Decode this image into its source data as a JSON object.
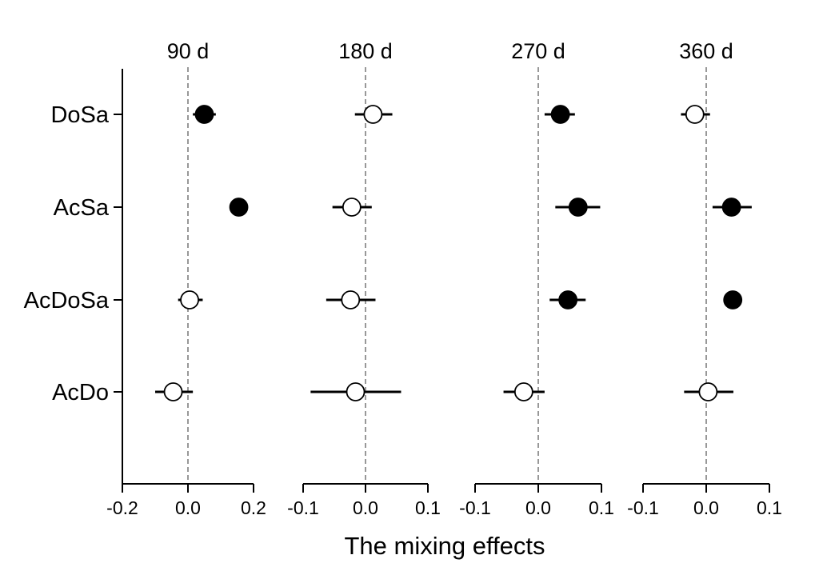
{
  "chart_data": {
    "type": "scatter",
    "subtype": "dot-and-whisker, faceted",
    "xlabel": "The mixing effects",
    "ylabel": "",
    "categories": [
      "DoSa",
      "AcSa",
      "AcDoSa",
      "AcDo"
    ],
    "reference_line": 0,
    "marker_legend": "filled = significant, open = not significant (no printed legend)",
    "panels": [
      {
        "title": "90 d",
        "xlim": [
          -0.2,
          0.2
        ],
        "xticks": [
          -0.2,
          0.0,
          0.2
        ],
        "xtick_labels": [
          "-0.2",
          "0.0",
          "0.2"
        ],
        "points": [
          {
            "category": "DoSa",
            "value": 0.05,
            "low": 0.015,
            "high": 0.085,
            "filled": true
          },
          {
            "category": "AcSa",
            "value": 0.155,
            "low": 0.145,
            "high": 0.165,
            "filled": true
          },
          {
            "category": "AcDoSa",
            "value": 0.005,
            "low": -0.03,
            "high": 0.045,
            "filled": false
          },
          {
            "category": "AcDo",
            "value": -0.045,
            "low": -0.1,
            "high": 0.015,
            "filled": false
          }
        ]
      },
      {
        "title": "180 d",
        "xlim": [
          -0.1,
          0.1
        ],
        "xticks": [
          -0.1,
          0.0,
          0.1
        ],
        "xtick_labels": [
          "-0.1",
          "0.0",
          "0.1"
        ],
        "points": [
          {
            "category": "DoSa",
            "value": 0.012,
            "low": -0.017,
            "high": 0.043,
            "filled": false
          },
          {
            "category": "AcSa",
            "value": -0.022,
            "low": -0.053,
            "high": 0.01,
            "filled": false
          },
          {
            "category": "AcDoSa",
            "value": -0.024,
            "low": -0.063,
            "high": 0.016,
            "filled": false
          },
          {
            "category": "AcDo",
            "value": -0.016,
            "low": -0.088,
            "high": 0.057,
            "filled": false
          }
        ]
      },
      {
        "title": "270 d",
        "xlim": [
          -0.1,
          0.1
        ],
        "xticks": [
          -0.1,
          0.0,
          0.1
        ],
        "xtick_labels": [
          "-0.1",
          "0.0",
          "0.1"
        ],
        "points": [
          {
            "category": "DoSa",
            "value": 0.035,
            "low": 0.01,
            "high": 0.058,
            "filled": true
          },
          {
            "category": "AcSa",
            "value": 0.063,
            "low": 0.027,
            "high": 0.098,
            "filled": true
          },
          {
            "category": "AcDoSa",
            "value": 0.047,
            "low": 0.018,
            "high": 0.075,
            "filled": true
          },
          {
            "category": "AcDo",
            "value": -0.023,
            "low": -0.055,
            "high": 0.01,
            "filled": false
          }
        ]
      },
      {
        "title": "360 d",
        "xlim": [
          -0.1,
          0.1
        ],
        "xticks": [
          -0.1,
          0.0,
          0.1
        ],
        "xtick_labels": [
          "-0.1",
          "0.0",
          "0.1"
        ],
        "points": [
          {
            "category": "DoSa",
            "value": -0.018,
            "low": -0.04,
            "high": 0.006,
            "filled": false
          },
          {
            "category": "AcSa",
            "value": 0.04,
            "low": 0.01,
            "high": 0.072,
            "filled": true
          },
          {
            "category": "AcDoSa",
            "value": 0.042,
            "low": 0.035,
            "high": 0.057,
            "filled": true
          },
          {
            "category": "AcDo",
            "value": 0.003,
            "low": -0.035,
            "high": 0.043,
            "filled": false
          }
        ]
      }
    ]
  }
}
